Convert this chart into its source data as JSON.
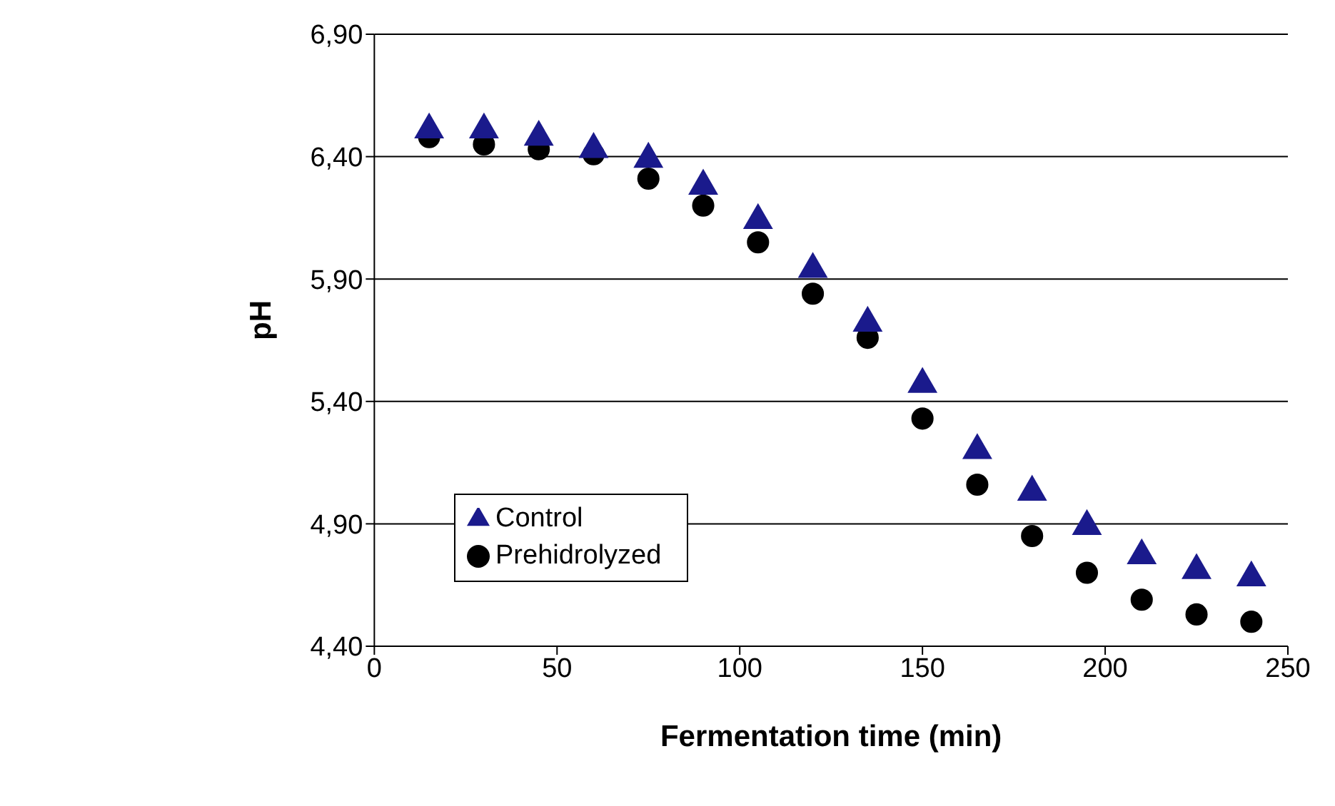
{
  "chart_data": {
    "type": "scatter",
    "xlabel": "Fermentation time (min)",
    "ylabel": "pH",
    "x": [
      15,
      30,
      45,
      60,
      75,
      90,
      105,
      120,
      135,
      150,
      165,
      180,
      195,
      210,
      225,
      240
    ],
    "series": [
      {
        "name": "Control",
        "color": "#1a1a8c",
        "marker": "triangle",
        "values": [
          6.51,
          6.51,
          6.48,
          6.43,
          6.39,
          6.28,
          6.14,
          5.94,
          5.72,
          5.47,
          5.2,
          5.03,
          4.89,
          4.77,
          4.71,
          4.68
        ]
      },
      {
        "name": "Prehidrolyzed",
        "color": "#000000",
        "marker": "circle",
        "values": [
          6.48,
          6.45,
          6.43,
          6.41,
          6.31,
          6.2,
          6.05,
          5.84,
          5.66,
          5.33,
          5.06,
          4.85,
          4.7,
          4.59,
          4.53,
          4.5
        ]
      }
    ],
    "xlim": [
      0,
      250
    ],
    "xticks": [
      0,
      50,
      100,
      150,
      200,
      250
    ],
    "ylim": [
      4.4,
      6.9
    ],
    "yticks": [
      {
        "value": 4.4,
        "label": "4,40"
      },
      {
        "value": 4.9,
        "label": "4,90"
      },
      {
        "value": 5.4,
        "label": "5,40"
      },
      {
        "value": 5.9,
        "label": "5,90"
      },
      {
        "value": 6.4,
        "label": "6,40"
      },
      {
        "value": 6.9,
        "label": "6,90"
      }
    ],
    "grid": "y",
    "legend": "center left"
  }
}
